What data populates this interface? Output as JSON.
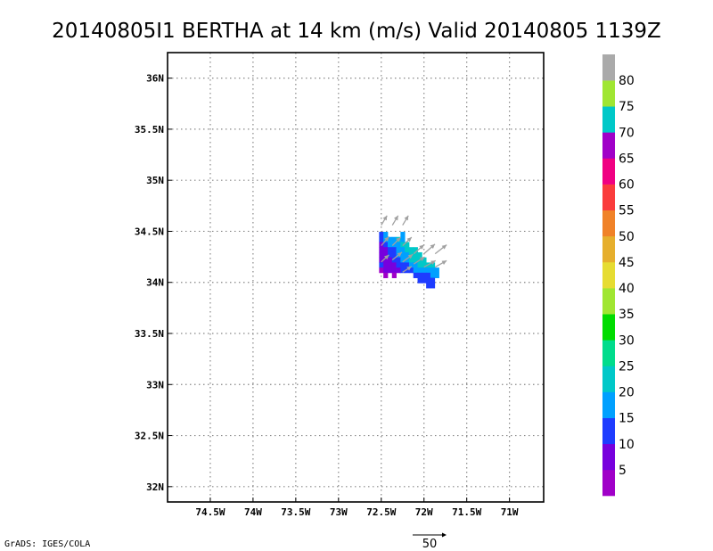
{
  "chart_data": {
    "type": "heatmap",
    "title": "20140805I1 BERTHA at 14 km (m/s) Valid 20140805 1139Z",
    "xlim": [
      -75.0,
      -70.6
    ],
    "ylim": [
      31.85,
      36.25
    ],
    "x_ticks": [
      {
        "value": -74.5,
        "label": "74.5W"
      },
      {
        "value": -74.0,
        "label": "74W"
      },
      {
        "value": -73.5,
        "label": "73.5W"
      },
      {
        "value": -73.0,
        "label": "73W"
      },
      {
        "value": -72.5,
        "label": "72.5W"
      },
      {
        "value": -72.0,
        "label": "72W"
      },
      {
        "value": -71.5,
        "label": "71.5W"
      },
      {
        "value": -71.0,
        "label": "71W"
      }
    ],
    "y_ticks": [
      {
        "value": 32.0,
        "label": "32N"
      },
      {
        "value": 32.5,
        "label": "32.5N"
      },
      {
        "value": 33.0,
        "label": "33N"
      },
      {
        "value": 33.5,
        "label": "33.5N"
      },
      {
        "value": 34.0,
        "label": "34N"
      },
      {
        "value": 34.5,
        "label": "34.5N"
      },
      {
        "value": 35.0,
        "label": "35N"
      },
      {
        "value": 35.5,
        "label": "35.5N"
      },
      {
        "value": 36.0,
        "label": "36N"
      }
    ],
    "grid": true,
    "colorbar": {
      "levels": [
        "5",
        "10",
        "15",
        "20",
        "25",
        "30",
        "35",
        "40",
        "45",
        "50",
        "55",
        "60",
        "65",
        "70",
        "75",
        "80"
      ],
      "colors": [
        "#a000c8",
        "#7700dd",
        "#1e3cff",
        "#00a0ff",
        "#00c8c8",
        "#00dc8c",
        "#00dc00",
        "#a0e632",
        "#e6dc32",
        "#e6af2d",
        "#f08228",
        "#fa3c3c",
        "#f00082",
        "#a000c8",
        "#00c8c8",
        "#a0e632",
        "#aaaaaa"
      ]
    },
    "cell_size_deg": [
      0.05,
      0.05
    ],
    "cells": [
      {
        "lon": -72.5,
        "lat": 34.47,
        "value": 13
      },
      {
        "lon": -72.45,
        "lat": 34.47,
        "value": 15
      },
      {
        "lon": -72.25,
        "lat": 34.47,
        "value": 18
      },
      {
        "lon": -72.5,
        "lat": 34.42,
        "value": 11
      },
      {
        "lon": -72.45,
        "lat": 34.42,
        "value": 15
      },
      {
        "lon": -72.4,
        "lat": 34.42,
        "value": 17
      },
      {
        "lon": -72.35,
        "lat": 34.42,
        "value": 18
      },
      {
        "lon": -72.3,
        "lat": 34.42,
        "value": 20
      },
      {
        "lon": -72.25,
        "lat": 34.42,
        "value": 19
      },
      {
        "lon": -72.5,
        "lat": 34.37,
        "value": 9
      },
      {
        "lon": -72.45,
        "lat": 34.37,
        "value": 12
      },
      {
        "lon": -72.4,
        "lat": 34.37,
        "value": 15
      },
      {
        "lon": -72.35,
        "lat": 34.37,
        "value": 17
      },
      {
        "lon": -72.3,
        "lat": 34.37,
        "value": 19
      },
      {
        "lon": -72.25,
        "lat": 34.37,
        "value": 20
      },
      {
        "lon": -72.2,
        "lat": 34.37,
        "value": 21
      },
      {
        "lon": -72.5,
        "lat": 34.32,
        "value": 7
      },
      {
        "lon": -72.45,
        "lat": 34.32,
        "value": 9
      },
      {
        "lon": -72.4,
        "lat": 34.32,
        "value": 12
      },
      {
        "lon": -72.35,
        "lat": 34.32,
        "value": 14
      },
      {
        "lon": -72.3,
        "lat": 34.32,
        "value": 17
      },
      {
        "lon": -72.25,
        "lat": 34.32,
        "value": 19
      },
      {
        "lon": -72.2,
        "lat": 34.32,
        "value": 20
      },
      {
        "lon": -72.15,
        "lat": 34.32,
        "value": 21
      },
      {
        "lon": -72.1,
        "lat": 34.32,
        "value": 22
      },
      {
        "lon": -72.5,
        "lat": 34.27,
        "value": 6
      },
      {
        "lon": -72.45,
        "lat": 34.27,
        "value": 8
      },
      {
        "lon": -72.4,
        "lat": 34.27,
        "value": 10
      },
      {
        "lon": -72.35,
        "lat": 34.27,
        "value": 12
      },
      {
        "lon": -72.3,
        "lat": 34.27,
        "value": 15
      },
      {
        "lon": -72.25,
        "lat": 34.27,
        "value": 17
      },
      {
        "lon": -72.2,
        "lat": 34.27,
        "value": 19
      },
      {
        "lon": -72.15,
        "lat": 34.27,
        "value": 21
      },
      {
        "lon": -72.1,
        "lat": 34.27,
        "value": 23
      },
      {
        "lon": -72.05,
        "lat": 34.27,
        "value": 24
      },
      {
        "lon": -72.5,
        "lat": 34.22,
        "value": 9
      },
      {
        "lon": -72.45,
        "lat": 34.22,
        "value": 7
      },
      {
        "lon": -72.4,
        "lat": 34.22,
        "value": 9
      },
      {
        "lon": -72.35,
        "lat": 34.22,
        "value": 11
      },
      {
        "lon": -72.3,
        "lat": 34.22,
        "value": 13
      },
      {
        "lon": -72.25,
        "lat": 34.22,
        "value": 15
      },
      {
        "lon": -72.2,
        "lat": 34.22,
        "value": 18
      },
      {
        "lon": -72.15,
        "lat": 34.22,
        "value": 20
      },
      {
        "lon": -72.1,
        "lat": 34.22,
        "value": 22
      },
      {
        "lon": -72.05,
        "lat": 34.22,
        "value": 23
      },
      {
        "lon": -72.0,
        "lat": 34.22,
        "value": 24
      },
      {
        "lon": -72.5,
        "lat": 34.17,
        "value": 12
      },
      {
        "lon": -72.45,
        "lat": 34.17,
        "value": 8
      },
      {
        "lon": -72.4,
        "lat": 34.17,
        "value": 7
      },
      {
        "lon": -72.35,
        "lat": 34.17,
        "value": 9
      },
      {
        "lon": -72.3,
        "lat": 34.17,
        "value": 11
      },
      {
        "lon": -72.25,
        "lat": 34.17,
        "value": 12
      },
      {
        "lon": -72.2,
        "lat": 34.17,
        "value": 14
      },
      {
        "lon": -72.15,
        "lat": 34.17,
        "value": 16
      },
      {
        "lon": -72.1,
        "lat": 34.17,
        "value": 19
      },
      {
        "lon": -72.05,
        "lat": 34.17,
        "value": 21
      },
      {
        "lon": -72.0,
        "lat": 34.17,
        "value": 22
      },
      {
        "lon": -71.95,
        "lat": 34.17,
        "value": 23
      },
      {
        "lon": -71.9,
        "lat": 34.17,
        "value": 21
      },
      {
        "lon": -72.5,
        "lat": 34.12,
        "value": 4
      },
      {
        "lon": -72.45,
        "lat": 34.12,
        "value": 5
      },
      {
        "lon": -72.4,
        "lat": 34.12,
        "value": 6
      },
      {
        "lon": -72.35,
        "lat": 34.12,
        "value": 6
      },
      {
        "lon": -72.3,
        "lat": 34.12,
        "value": 9
      },
      {
        "lon": -72.25,
        "lat": 34.12,
        "value": 10
      },
      {
        "lon": -72.2,
        "lat": 34.12,
        "value": 12
      },
      {
        "lon": -72.15,
        "lat": 34.12,
        "value": 14
      },
      {
        "lon": -72.1,
        "lat": 34.12,
        "value": 15
      },
      {
        "lon": -72.05,
        "lat": 34.12,
        "value": 16
      },
      {
        "lon": -72.0,
        "lat": 34.12,
        "value": 17
      },
      {
        "lon": -71.95,
        "lat": 34.12,
        "value": 18
      },
      {
        "lon": -71.9,
        "lat": 34.12,
        "value": 19
      },
      {
        "lon": -71.85,
        "lat": 34.12,
        "value": 17
      },
      {
        "lon": -72.45,
        "lat": 34.07,
        "value": 4
      },
      {
        "lon": -72.35,
        "lat": 34.07,
        "value": 3
      },
      {
        "lon": -72.1,
        "lat": 34.07,
        "value": 12
      },
      {
        "lon": -72.05,
        "lat": 34.07,
        "value": 11
      },
      {
        "lon": -72.0,
        "lat": 34.07,
        "value": 13
      },
      {
        "lon": -71.95,
        "lat": 34.07,
        "value": 14
      },
      {
        "lon": -71.9,
        "lat": 34.07,
        "value": 16
      },
      {
        "lon": -71.85,
        "lat": 34.07,
        "value": 17
      },
      {
        "lon": -72.05,
        "lat": 34.02,
        "value": 10
      },
      {
        "lon": -72.0,
        "lat": 34.02,
        "value": 11
      },
      {
        "lon": -71.95,
        "lat": 34.02,
        "value": 12
      },
      {
        "lon": -71.9,
        "lat": 34.02,
        "value": 14
      },
      {
        "lon": -71.95,
        "lat": 33.97,
        "value": 13
      },
      {
        "lon": -71.9,
        "lat": 33.97,
        "value": 14
      }
    ],
    "vectors": [
      {
        "lon": -72.5,
        "lat": 34.56,
        "u": 9,
        "v": 15
      },
      {
        "lon": -72.37,
        "lat": 34.56,
        "u": 9,
        "v": 15
      },
      {
        "lon": -72.25,
        "lat": 34.56,
        "u": 9,
        "v": 15
      },
      {
        "lon": -72.5,
        "lat": 34.36,
        "u": 12,
        "v": 14
      },
      {
        "lon": -72.37,
        "lat": 34.36,
        "u": 13,
        "v": 13
      },
      {
        "lon": -72.25,
        "lat": 34.36,
        "u": 14,
        "v": 13
      },
      {
        "lon": -72.12,
        "lat": 34.28,
        "u": 16,
        "v": 14
      },
      {
        "lon": -72.0,
        "lat": 34.28,
        "u": 17,
        "v": 15
      },
      {
        "lon": -71.87,
        "lat": 34.28,
        "u": 18,
        "v": 14
      },
      {
        "lon": -72.37,
        "lat": 34.22,
        "u": 15,
        "v": 12
      },
      {
        "lon": -72.25,
        "lat": 34.2,
        "u": 16,
        "v": 12
      },
      {
        "lon": -72.12,
        "lat": 34.18,
        "u": 17,
        "v": 11
      },
      {
        "lon": -72.0,
        "lat": 34.15,
        "u": 18,
        "v": 10
      },
      {
        "lon": -71.87,
        "lat": 34.15,
        "u": 18,
        "v": 10
      },
      {
        "lon": -72.5,
        "lat": 34.2,
        "u": 12,
        "v": 11
      },
      {
        "lon": -72.25,
        "lat": 34.1,
        "u": 14,
        "v": 9
      }
    ],
    "reference_vector": {
      "label": "50",
      "value": 50
    }
  },
  "footer": {
    "credit": "GrADS: IGES/COLA"
  }
}
